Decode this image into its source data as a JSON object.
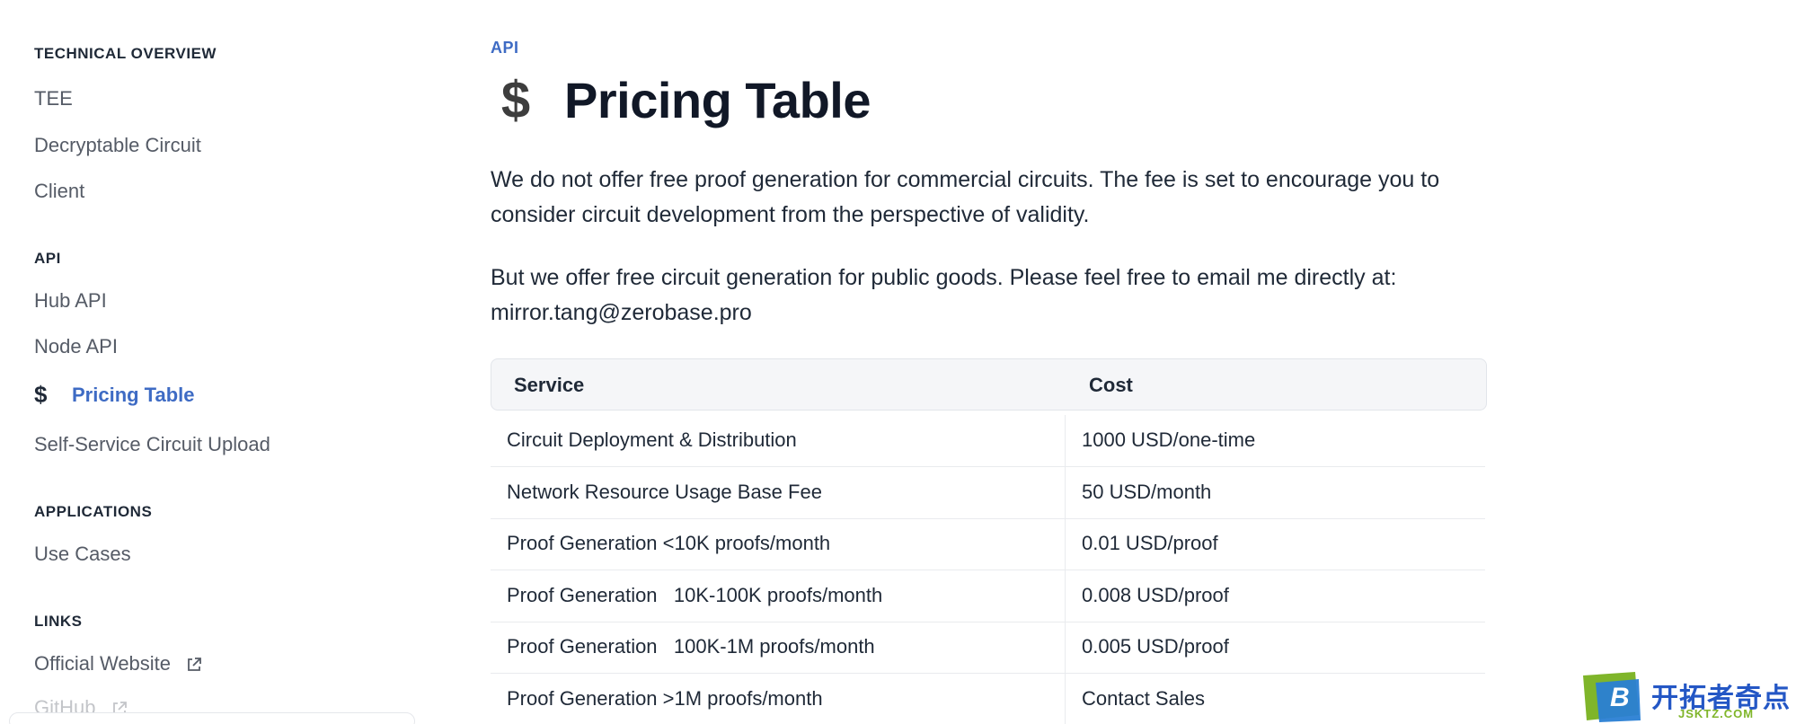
{
  "sidebar": {
    "sections": [
      {
        "title": "TECHNICAL OVERVIEW",
        "items": [
          "TEE",
          "Decryptable Circuit",
          "Client"
        ]
      },
      {
        "title": "API",
        "items": [
          "Hub API",
          "Node API",
          "Pricing Table",
          "Self-Service Circuit Upload"
        ]
      },
      {
        "title": "APPLICATIONS",
        "items": [
          "Use Cases"
        ]
      },
      {
        "title": "LINKS",
        "items": [
          "Official Website",
          "GitHub"
        ]
      }
    ],
    "active_icon": "$"
  },
  "main": {
    "breadcrumb": "API",
    "title_icon": "$",
    "title": "Pricing Table",
    "paragraph1": "We do not offer free proof generation for commercial circuits. The fee is set to encourage you to consider circuit development from the perspective of validity.",
    "paragraph2": "But we offer free circuit generation for public goods. Please feel free to email me directly at: mirror.tang@zerobase.pro",
    "table": {
      "headers": [
        "Service",
        "Cost"
      ],
      "rows": [
        [
          "Circuit Deployment & Distribution",
          "1000 USD/one-time"
        ],
        [
          "Network Resource Usage Base Fee",
          "50 USD/month"
        ],
        [
          "Proof Generation <10K proofs/month",
          "0.01 USD/proof"
        ],
        [
          "Proof Generation   10K-100K proofs/month",
          "0.008 USD/proof"
        ],
        [
          "Proof Generation   100K-1M proofs/month",
          "0.005 USD/proof"
        ],
        [
          "Proof Generation >1M proofs/month",
          "Contact Sales"
        ]
      ]
    }
  },
  "watermark": {
    "letter": "B",
    "main": "开拓者奇点",
    "sub": "JSKTZ.COM"
  },
  "colors": {
    "accent": "#3e6bc4",
    "text": "#1f2937",
    "muted": "#555b66"
  }
}
